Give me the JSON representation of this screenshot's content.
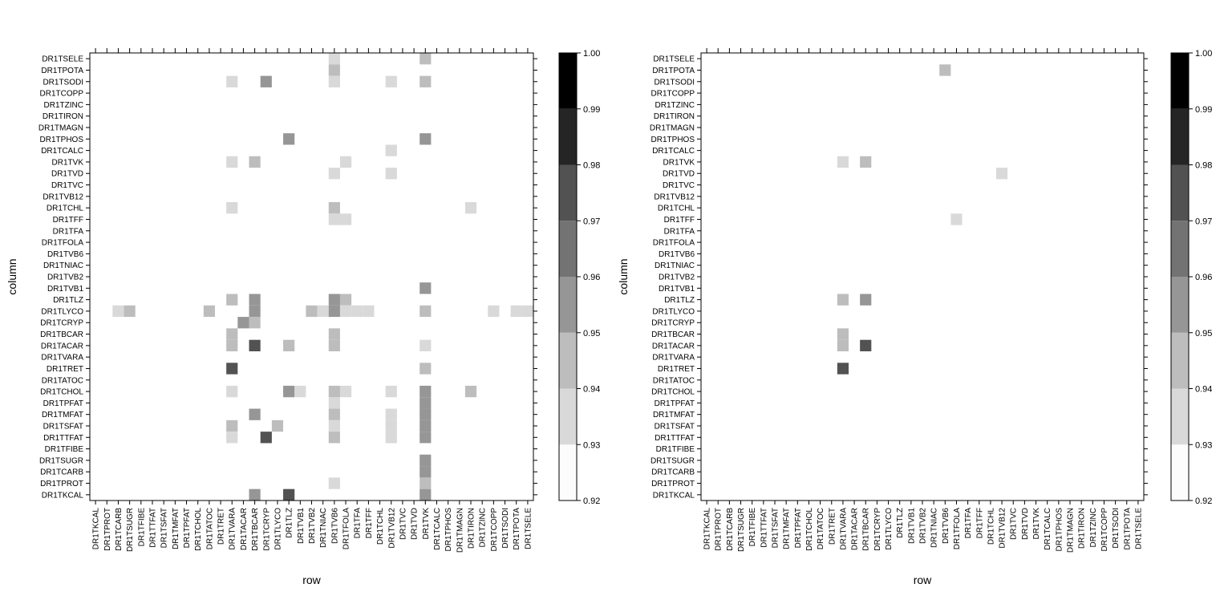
{
  "chart_data": [
    {
      "type": "heatmap",
      "title": "",
      "xlabel": "row",
      "ylabel": "column",
      "x_categories": [
        "DR1TKCAL",
        "DR1TPROT",
        "DR1TCARB",
        "DR1TSUGR",
        "DR1TFIBE",
        "DR1TTFAT",
        "DR1TSFAT",
        "DR1TMFAT",
        "DR1TPFAT",
        "DR1TCHOL",
        "DR1TATOC",
        "DR1TRET",
        "DR1TVARA",
        "DR1TACAR",
        "DR1TBCAR",
        "DR1TCRYP",
        "DR1TLYCO",
        "DR1TLZ",
        "DR1TVB1",
        "DR1TVB2",
        "DR1TNIAC",
        "DR1TVB6",
        "DR1TFOLA",
        "DR1TFA",
        "DR1TFF",
        "DR1TCHL",
        "DR1TVB12",
        "DR1TVC",
        "DR1TVD",
        "DR1TVK",
        "DR1TCALC",
        "DR1TPHOS",
        "DR1TMAGN",
        "DR1TIRON",
        "DR1TZINC",
        "DR1TCOPP",
        "DR1TSODI",
        "DR1TPOTA",
        "DR1TSELE"
      ],
      "y_categories_top_to_bottom": [
        "DR1TSELE",
        "DR1TPOTA",
        "DR1TSODI",
        "DR1TCOPP",
        "DR1TZINC",
        "DR1TIRON",
        "DR1TMAGN",
        "DR1TPHOS",
        "DR1TCALC",
        "DR1TVK",
        "DR1TVD",
        "DR1TVC",
        "DR1TVB12",
        "DR1TCHL",
        "DR1TFF",
        "DR1TFA",
        "DR1TFOLA",
        "DR1TVB6",
        "DR1TNIAC",
        "DR1TVB2",
        "DR1TVB1",
        "DR1TLZ",
        "DR1TLYCO",
        "DR1TCRYP",
        "DR1TBCAR",
        "DR1TACAR",
        "DR1TVARA",
        "DR1TRET",
        "DR1TATOC",
        "DR1TCHOL",
        "DR1TPFAT",
        "DR1TMFAT",
        "DR1TSFAT",
        "DR1TTFAT",
        "DR1TFIBE",
        "DR1TSUGR",
        "DR1TCARB",
        "DR1TPROT",
        "DR1TKCAL"
      ],
      "colorbar": {
        "min": 0.92,
        "max": 1.0,
        "ticks": [
          "0.92",
          "0.93",
          "0.94",
          "0.95",
          "0.96",
          "0.97",
          "0.98",
          "0.99",
          "1.00"
        ]
      },
      "cells": [
        {
          "row": "DR1TVB6",
          "column": "DR1TSELE",
          "value": 0.935
        },
        {
          "row": "DR1TVK",
          "column": "DR1TSELE",
          "value": 0.945
        },
        {
          "row": "DR1TVB6",
          "column": "DR1TPOTA",
          "value": 0.945
        },
        {
          "row": "DR1TVARA",
          "column": "DR1TSODI",
          "value": 0.935
        },
        {
          "row": "DR1TCRYP",
          "column": "DR1TSODI",
          "value": 0.955
        },
        {
          "row": "DR1TVB6",
          "column": "DR1TSODI",
          "value": 0.935
        },
        {
          "row": "DR1TVB12",
          "column": "DR1TSODI",
          "value": 0.935
        },
        {
          "row": "DR1TVK",
          "column": "DR1TSODI",
          "value": 0.945
        },
        {
          "row": "DR1TLZ",
          "column": "DR1TPHOS",
          "value": 0.955
        },
        {
          "row": "DR1TVK",
          "column": "DR1TPHOS",
          "value": 0.955
        },
        {
          "row": "DR1TVB12",
          "column": "DR1TCALC",
          "value": 0.935
        },
        {
          "row": "DR1TVARA",
          "column": "DR1TVK",
          "value": 0.935
        },
        {
          "row": "DR1TBCAR",
          "column": "DR1TVK",
          "value": 0.945
        },
        {
          "row": "DR1TFOLA",
          "column": "DR1TVK",
          "value": 0.935
        },
        {
          "row": "DR1TVB6",
          "column": "DR1TVD",
          "value": 0.935
        },
        {
          "row": "DR1TVB12",
          "column": "DR1TVD",
          "value": 0.935
        },
        {
          "row": "DR1TVARA",
          "column": "DR1TCHL",
          "value": 0.935
        },
        {
          "row": "DR1TVB6",
          "column": "DR1TCHL",
          "value": 0.945
        },
        {
          "row": "DR1TIRON",
          "column": "DR1TCHL",
          "value": 0.935
        },
        {
          "row": "DR1TVB6",
          "column": "DR1TFF",
          "value": 0.935
        },
        {
          "row": "DR1TFOLA",
          "column": "DR1TFF",
          "value": 0.935
        },
        {
          "row": "DR1TVK",
          "column": "DR1TVB1",
          "value": 0.955
        },
        {
          "row": "DR1TVARA",
          "column": "DR1TLZ",
          "value": 0.945
        },
        {
          "row": "DR1TBCAR",
          "column": "DR1TLZ",
          "value": 0.955
        },
        {
          "row": "DR1TVB6",
          "column": "DR1TLZ",
          "value": 0.955
        },
        {
          "row": "DR1TFOLA",
          "column": "DR1TLZ",
          "value": 0.945
        },
        {
          "row": "DR1TCARB",
          "column": "DR1TLYCO",
          "value": 0.935
        },
        {
          "row": "DR1TSUGR",
          "column": "DR1TLYCO",
          "value": 0.945
        },
        {
          "row": "DR1TATOC",
          "column": "DR1TLYCO",
          "value": 0.945
        },
        {
          "row": "DR1TBCAR",
          "column": "DR1TLYCO",
          "value": 0.955
        },
        {
          "row": "DR1TVB2",
          "column": "DR1TLYCO",
          "value": 0.945
        },
        {
          "row": "DR1TNIAC",
          "column": "DR1TLYCO",
          "value": 0.935
        },
        {
          "row": "DR1TVB6",
          "column": "DR1TLYCO",
          "value": 0.955
        },
        {
          "row": "DR1TFOLA",
          "column": "DR1TLYCO",
          "value": 0.935
        },
        {
          "row": "DR1TFA",
          "column": "DR1TLYCO",
          "value": 0.935
        },
        {
          "row": "DR1TFF",
          "column": "DR1TLYCO",
          "value": 0.935
        },
        {
          "row": "DR1TVK",
          "column": "DR1TLYCO",
          "value": 0.945
        },
        {
          "row": "DR1TCOPP",
          "column": "DR1TLYCO",
          "value": 0.935
        },
        {
          "row": "DR1TPOTA",
          "column": "DR1TLYCO",
          "value": 0.935
        },
        {
          "row": "DR1TSELE",
          "column": "DR1TLYCO",
          "value": 0.935
        },
        {
          "row": "DR1TACAR",
          "column": "DR1TCRYP",
          "value": 0.955
        },
        {
          "row": "DR1TBCAR",
          "column": "DR1TCRYP",
          "value": 0.945
        },
        {
          "row": "DR1TVARA",
          "column": "DR1TBCAR",
          "value": 0.945
        },
        {
          "row": "DR1TVB6",
          "column": "DR1TBCAR",
          "value": 0.945
        },
        {
          "row": "DR1TVARA",
          "column": "DR1TACAR",
          "value": 0.945
        },
        {
          "row": "DR1TBCAR",
          "column": "DR1TACAR",
          "value": 0.975
        },
        {
          "row": "DR1TLZ",
          "column": "DR1TACAR",
          "value": 0.945
        },
        {
          "row": "DR1TVB6",
          "column": "DR1TACAR",
          "value": 0.945
        },
        {
          "row": "DR1TVK",
          "column": "DR1TACAR",
          "value": 0.935
        },
        {
          "row": "DR1TVARA",
          "column": "DR1TRET",
          "value": 0.975
        },
        {
          "row": "DR1TVK",
          "column": "DR1TRET",
          "value": 0.945
        },
        {
          "row": "DR1TVARA",
          "column": "DR1TCHOL",
          "value": 0.935
        },
        {
          "row": "DR1TLZ",
          "column": "DR1TCHOL",
          "value": 0.955
        },
        {
          "row": "DR1TVB1",
          "column": "DR1TCHOL",
          "value": 0.935
        },
        {
          "row": "DR1TVB6",
          "column": "DR1TCHOL",
          "value": 0.945
        },
        {
          "row": "DR1TFOLA",
          "column": "DR1TCHOL",
          "value": 0.935
        },
        {
          "row": "DR1TVB12",
          "column": "DR1TCHOL",
          "value": 0.935
        },
        {
          "row": "DR1TVK",
          "column": "DR1TCHOL",
          "value": 0.955
        },
        {
          "row": "DR1TIRON",
          "column": "DR1TCHOL",
          "value": 0.945
        },
        {
          "row": "DR1TVB6",
          "column": "DR1TPFAT",
          "value": 0.935
        },
        {
          "row": "DR1TVK",
          "column": "DR1TPFAT",
          "value": 0.955
        },
        {
          "row": "DR1TBCAR",
          "column": "DR1TMFAT",
          "value": 0.955
        },
        {
          "row": "DR1TVB6",
          "column": "DR1TMFAT",
          "value": 0.945
        },
        {
          "row": "DR1TVB12",
          "column": "DR1TMFAT",
          "value": 0.935
        },
        {
          "row": "DR1TVK",
          "column": "DR1TMFAT",
          "value": 0.955
        },
        {
          "row": "DR1TVARA",
          "column": "DR1TSFAT",
          "value": 0.945
        },
        {
          "row": "DR1TLYCO",
          "column": "DR1TSFAT",
          "value": 0.945
        },
        {
          "row": "DR1TVB6",
          "column": "DR1TSFAT",
          "value": 0.935
        },
        {
          "row": "DR1TVB12",
          "column": "DR1TSFAT",
          "value": 0.935
        },
        {
          "row": "DR1TVK",
          "column": "DR1TSFAT",
          "value": 0.955
        },
        {
          "row": "DR1TVARA",
          "column": "DR1TTFAT",
          "value": 0.935
        },
        {
          "row": "DR1TCRYP",
          "column": "DR1TTFAT",
          "value": 0.975
        },
        {
          "row": "DR1TVB6",
          "column": "DR1TTFAT",
          "value": 0.945
        },
        {
          "row": "DR1TVB12",
          "column": "DR1TTFAT",
          "value": 0.935
        },
        {
          "row": "DR1TVK",
          "column": "DR1TTFAT",
          "value": 0.955
        },
        {
          "row": "DR1TVK",
          "column": "DR1TSUGR",
          "value": 0.955
        },
        {
          "row": "DR1TVK",
          "column": "DR1TCARB",
          "value": 0.955
        },
        {
          "row": "DR1TVB6",
          "column": "DR1TPROT",
          "value": 0.935
        },
        {
          "row": "DR1TVK",
          "column": "DR1TPROT",
          "value": 0.945
        },
        {
          "row": "DR1TBCAR",
          "column": "DR1TKCAL",
          "value": 0.955
        },
        {
          "row": "DR1TLZ",
          "column": "DR1TKCAL",
          "value": 0.975
        },
        {
          "row": "DR1TVK",
          "column": "DR1TKCAL",
          "value": 0.955
        }
      ]
    },
    {
      "type": "heatmap",
      "title": "",
      "xlabel": "row",
      "ylabel": "column",
      "x_categories": [
        "DR1TKCAL",
        "DR1TPROT",
        "DR1TCARB",
        "DR1TSUGR",
        "DR1TFIBE",
        "DR1TTFAT",
        "DR1TSFAT",
        "DR1TMFAT",
        "DR1TPFAT",
        "DR1TCHOL",
        "DR1TATOC",
        "DR1TRET",
        "DR1TVARA",
        "DR1TACAR",
        "DR1TBCAR",
        "DR1TCRYP",
        "DR1TLYCO",
        "DR1TLZ",
        "DR1TVB1",
        "DR1TVB2",
        "DR1TNIAC",
        "DR1TVB6",
        "DR1TFOLA",
        "DR1TFA",
        "DR1TFF",
        "DR1TCHL",
        "DR1TVB12",
        "DR1TVC",
        "DR1TVD",
        "DR1TVK",
        "DR1TCALC",
        "DR1TPHOS",
        "DR1TMAGN",
        "DR1TIRON",
        "DR1TZINC",
        "DR1TCOPP",
        "DR1TSODI",
        "DR1TPOTA",
        "DR1TSELE"
      ],
      "y_categories_top_to_bottom": [
        "DR1TSELE",
        "DR1TPOTA",
        "DR1TSODI",
        "DR1TCOPP",
        "DR1TZINC",
        "DR1TIRON",
        "DR1TMAGN",
        "DR1TPHOS",
        "DR1TCALC",
        "DR1TVK",
        "DR1TVD",
        "DR1TVC",
        "DR1TVB12",
        "DR1TCHL",
        "DR1TFF",
        "DR1TFA",
        "DR1TFOLA",
        "DR1TVB6",
        "DR1TNIAC",
        "DR1TVB2",
        "DR1TVB1",
        "DR1TLZ",
        "DR1TLYCO",
        "DR1TCRYP",
        "DR1TBCAR",
        "DR1TACAR",
        "DR1TVARA",
        "DR1TRET",
        "DR1TATOC",
        "DR1TCHOL",
        "DR1TPFAT",
        "DR1TMFAT",
        "DR1TSFAT",
        "DR1TTFAT",
        "DR1TFIBE",
        "DR1TSUGR",
        "DR1TCARB",
        "DR1TPROT",
        "DR1TKCAL"
      ],
      "colorbar": {
        "min": 0.92,
        "max": 1.0,
        "ticks": [
          "0.92",
          "0.93",
          "0.94",
          "0.95",
          "0.96",
          "0.97",
          "0.98",
          "0.99",
          "1.00"
        ]
      },
      "cells": [
        {
          "row": "DR1TVB6",
          "column": "DR1TPOTA",
          "value": 0.945
        },
        {
          "row": "DR1TVARA",
          "column": "DR1TVK",
          "value": 0.935
        },
        {
          "row": "DR1TBCAR",
          "column": "DR1TVK",
          "value": 0.945
        },
        {
          "row": "DR1TVB12",
          "column": "DR1TVD",
          "value": 0.935
        },
        {
          "row": "DR1TFOLA",
          "column": "DR1TFF",
          "value": 0.935
        },
        {
          "row": "DR1TVARA",
          "column": "DR1TLZ",
          "value": 0.945
        },
        {
          "row": "DR1TBCAR",
          "column": "DR1TLZ",
          "value": 0.955
        },
        {
          "row": "DR1TVARA",
          "column": "DR1TBCAR",
          "value": 0.945
        },
        {
          "row": "DR1TVARA",
          "column": "DR1TACAR",
          "value": 0.945
        },
        {
          "row": "DR1TBCAR",
          "column": "DR1TACAR",
          "value": 0.975
        },
        {
          "row": "DR1TVARA",
          "column": "DR1TRET",
          "value": 0.975
        }
      ]
    }
  ],
  "colorbar_colors": [
    "#fcfcfc",
    "#d9d9d9",
    "#bdbdbd",
    "#969696",
    "#737373",
    "#525252",
    "#252525",
    "#000000"
  ]
}
